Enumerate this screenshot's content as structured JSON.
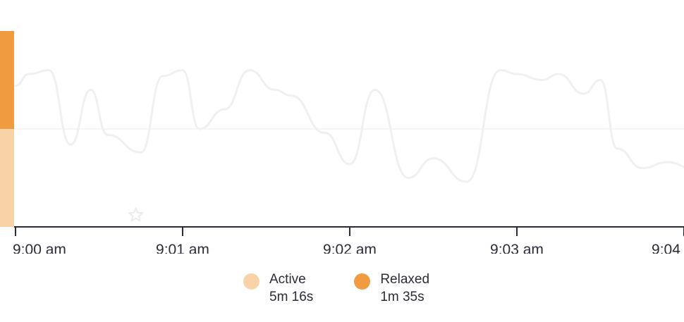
{
  "colors": {
    "active": "#f8d3a8",
    "relaxed": "#f19b40",
    "axis": "#2b2b3a",
    "midline": "#f2f2f2",
    "trace": "#f0f0f0"
  },
  "chart_data": {
    "type": "line",
    "title": "",
    "xlabel": "",
    "ylabel": "",
    "x_ticks": [
      "9:00 am",
      "9:01 am",
      "9:02 am",
      "9:03 am",
      "9:04 am"
    ],
    "xlim": [
      0,
      4.9
    ],
    "ylim": [
      0,
      1
    ],
    "grid": false,
    "state_bar": [
      {
        "state": "Relaxed",
        "from": 0.5,
        "to": 1.0
      },
      {
        "state": "Active",
        "from": 0.0,
        "to": 0.5
      }
    ],
    "series": [
      {
        "x": [
          0,
          0.08,
          0.2,
          0.33,
          0.45,
          0.55,
          0.75,
          0.88,
          1.0,
          1.1,
          1.25,
          1.4,
          1.55,
          1.65,
          1.85,
          2.0,
          2.15,
          2.35,
          2.5,
          2.7,
          2.9,
          3.0,
          3.15,
          3.25,
          3.4,
          3.5,
          3.6,
          3.75,
          3.9,
          4.05,
          4.2,
          4.35,
          4.5,
          4.6,
          4.7,
          4.8
        ],
        "values": [
          0.72,
          0.78,
          0.8,
          0.42,
          0.7,
          0.47,
          0.38,
          0.77,
          0.8,
          0.5,
          0.6,
          0.8,
          0.7,
          0.67,
          0.48,
          0.32,
          0.7,
          0.25,
          0.35,
          0.23,
          0.8,
          0.78,
          0.75,
          0.78,
          0.68,
          0.75,
          0.4,
          0.3,
          0.33,
          0.3,
          0.29,
          0.3,
          0.31,
          0.76,
          0.73,
          0.35
        ]
      }
    ],
    "annotations": [
      {
        "type": "star",
        "x": 0.72,
        "y": 0.06
      }
    ]
  },
  "legend": [
    {
      "label": "Active",
      "value": "5m 16s",
      "color_key": "active"
    },
    {
      "label": "Relaxed",
      "value": "1m 35s",
      "color_key": "relaxed"
    }
  ]
}
